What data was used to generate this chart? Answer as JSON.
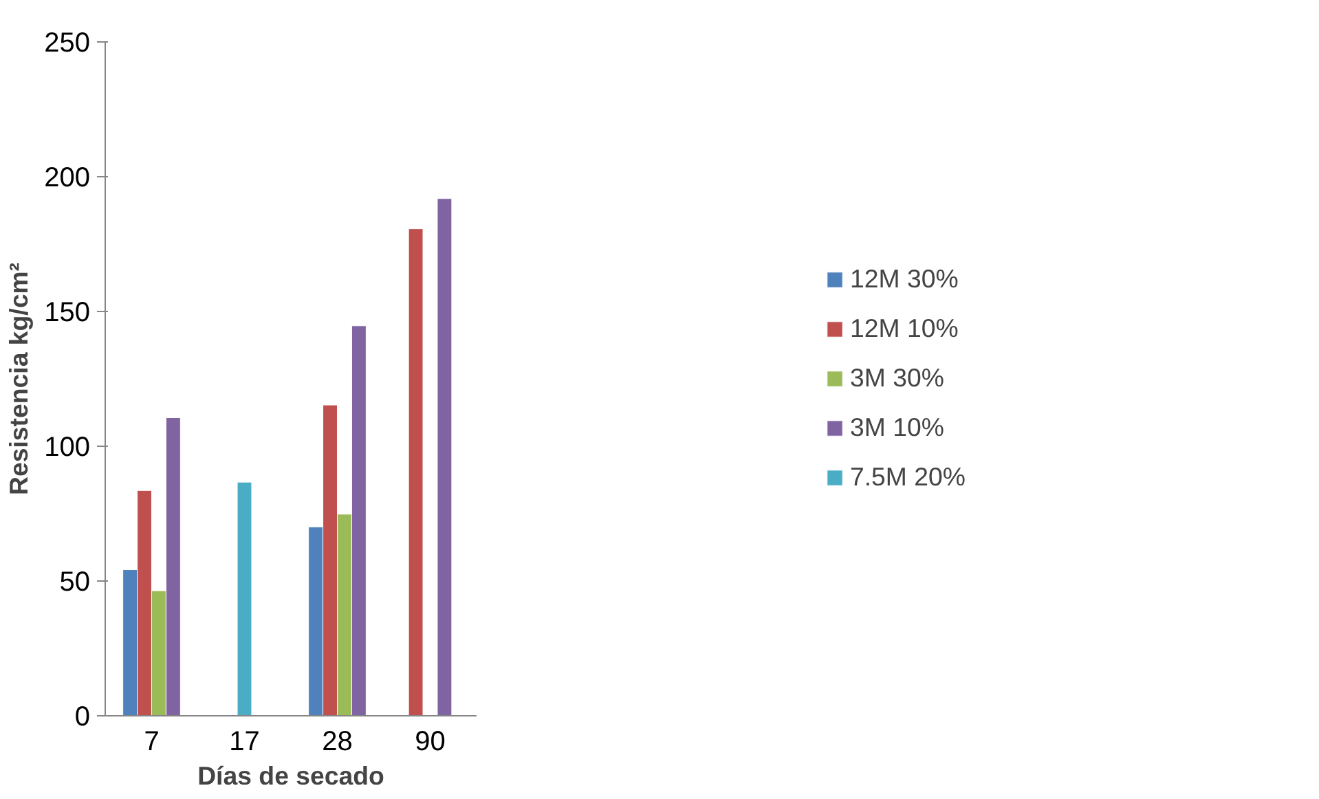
{
  "chart_data": {
    "type": "bar",
    "xlabel": "Días de secado",
    "ylabel": "Resistencia kg/cm²",
    "categories": [
      "7",
      "17",
      "28",
      "90"
    ],
    "series": [
      {
        "name": "12M 30%",
        "color": "#4f81bd",
        "values": [
          54.2,
          null,
          70.1,
          null
        ]
      },
      {
        "name": "12M 10%",
        "color": "#c0504d",
        "values": [
          83.6,
          null,
          115.3,
          180.7
        ]
      },
      {
        "name": "3M 30%",
        "color": "#9bbb59",
        "values": [
          46.4,
          null,
          74.8,
          null
        ]
      },
      {
        "name": "3M 10%",
        "color": "#8064a2",
        "values": [
          110.6,
          null,
          144.7,
          191.9
        ]
      },
      {
        "name": "7.5M 20%",
        "color": "#4bacc6",
        "values": [
          null,
          86.7,
          null,
          null
        ]
      }
    ],
    "ylim": [
      0,
      250
    ],
    "yticks": [
      0,
      50,
      100,
      150,
      200,
      250
    ],
    "grid": false,
    "legend": "right"
  }
}
